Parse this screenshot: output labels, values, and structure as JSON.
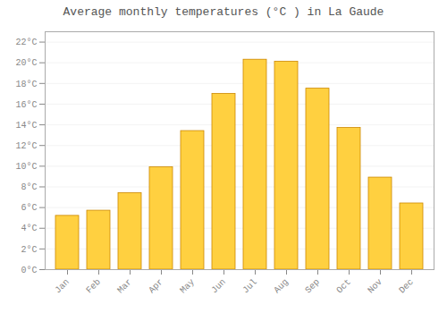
{
  "chart_data": {
    "type": "bar",
    "title": "Average monthly temperatures (°C ) in La Gaude",
    "categories": [
      "Jan",
      "Feb",
      "Mar",
      "Apr",
      "May",
      "Jun",
      "Jul",
      "Aug",
      "Sep",
      "Oct",
      "Nov",
      "Dec"
    ],
    "values": [
      5.2,
      5.7,
      7.4,
      9.9,
      13.4,
      17.0,
      20.3,
      20.1,
      17.5,
      13.7,
      8.9,
      6.4
    ],
    "color": "#FFD040",
    "ylim": [
      0,
      23
    ],
    "yticks": [
      {
        "value": 0,
        "label": "0°C"
      },
      {
        "value": 2,
        "label": "2°C"
      },
      {
        "value": 4,
        "label": "4°C"
      },
      {
        "value": 6,
        "label": "6°C"
      },
      {
        "value": 8,
        "label": "8°C"
      },
      {
        "value": 10,
        "label": "10°C"
      },
      {
        "value": 12,
        "label": "12°C"
      },
      {
        "value": 14,
        "label": "14°C"
      },
      {
        "value": 16,
        "label": "16°C"
      },
      {
        "value": 18,
        "label": "18°C"
      },
      {
        "value": 20,
        "label": "20°C"
      },
      {
        "value": 22,
        "label": "22°C"
      }
    ],
    "grid": true
  }
}
